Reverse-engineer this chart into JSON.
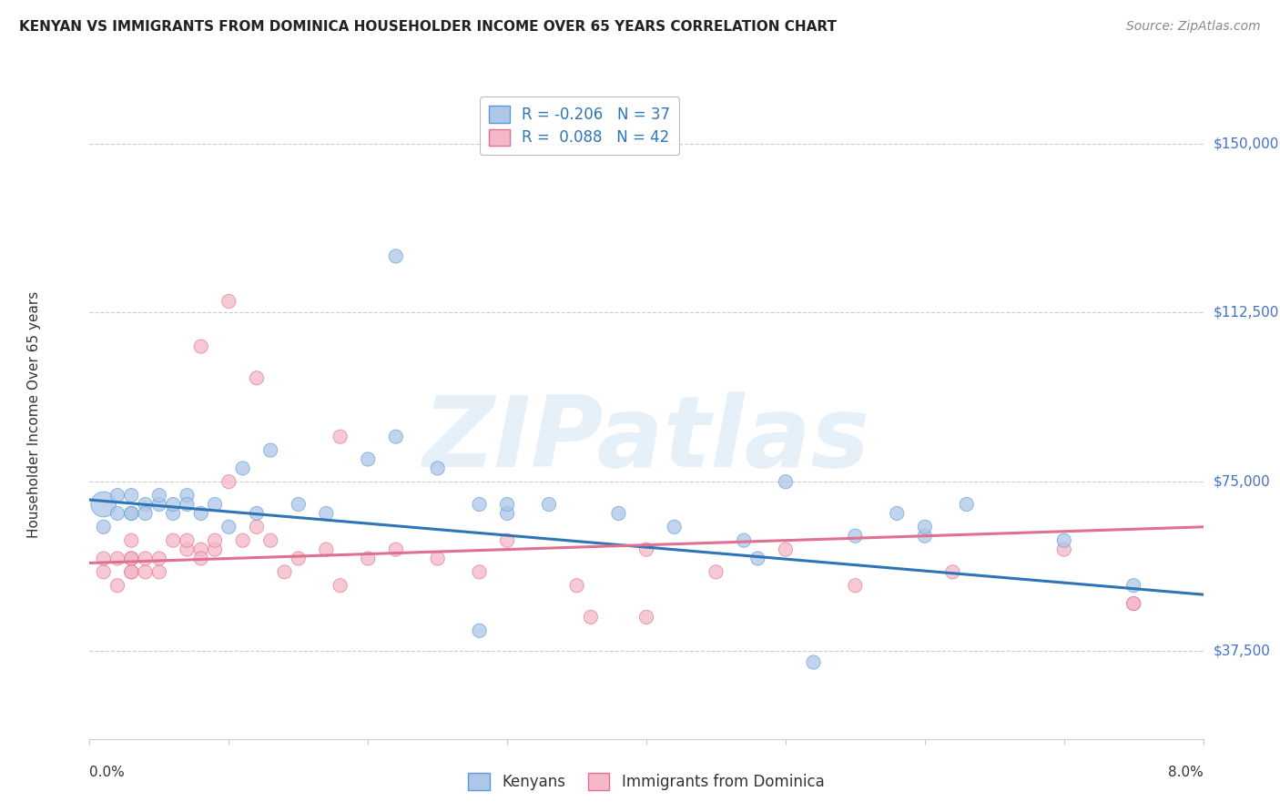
{
  "title": "KENYAN VS IMMIGRANTS FROM DOMINICA HOUSEHOLDER INCOME OVER 65 YEARS CORRELATION CHART",
  "source": "Source: ZipAtlas.com",
  "ylabel": "Householder Income Over 65 years",
  "xlim": [
    0.0,
    0.08
  ],
  "ylim": [
    18000,
    162000
  ],
  "yticks": [
    37500,
    75000,
    112500,
    150000
  ],
  "ytick_labels": [
    "$37,500",
    "$75,000",
    "$112,500",
    "$150,000"
  ],
  "xtick_positions": [
    0.0,
    0.01,
    0.02,
    0.03,
    0.04,
    0.05,
    0.06,
    0.07,
    0.08
  ],
  "xtick_labels": [
    "0.0%",
    "",
    "",
    "",
    "",
    "",
    "",
    "",
    "8.0%"
  ],
  "legend_entries": [
    {
      "label": "R = -0.206   N = 37",
      "color": "#aec6e8",
      "edgecolor": "#5b9bd5"
    },
    {
      "label": "R =  0.088   N = 42",
      "color": "#f4b8c8",
      "edgecolor": "#e07090"
    }
  ],
  "bottom_legend": [
    {
      "label": "Kenyans",
      "color": "#aec6e8",
      "edgecolor": "#5b9bd5"
    },
    {
      "label": "Immigrants from Dominica",
      "color": "#f4b8c8",
      "edgecolor": "#e07090"
    }
  ],
  "kenyan_scatter": {
    "x": [
      0.001,
      0.001,
      0.002,
      0.002,
      0.003,
      0.003,
      0.003,
      0.004,
      0.004,
      0.005,
      0.005,
      0.006,
      0.006,
      0.007,
      0.007,
      0.008,
      0.009,
      0.01,
      0.011,
      0.012,
      0.013,
      0.015,
      0.017,
      0.02,
      0.022,
      0.025,
      0.028,
      0.03,
      0.033,
      0.038,
      0.042,
      0.047,
      0.055,
      0.06,
      0.063,
      0.07,
      0.075
    ],
    "y": [
      65000,
      70000,
      68000,
      72000,
      68000,
      72000,
      68000,
      70000,
      68000,
      70000,
      72000,
      68000,
      70000,
      72000,
      70000,
      68000,
      70000,
      65000,
      78000,
      68000,
      82000,
      70000,
      68000,
      80000,
      85000,
      78000,
      70000,
      68000,
      70000,
      68000,
      65000,
      62000,
      63000,
      63000,
      70000,
      62000,
      52000
    ],
    "sizes": [
      120,
      400,
      120,
      120,
      120,
      120,
      120,
      120,
      120,
      120,
      120,
      120,
      120,
      120,
      120,
      120,
      120,
      120,
      120,
      120,
      120,
      120,
      120,
      120,
      120,
      120,
      120,
      120,
      120,
      120,
      120,
      120,
      120,
      120,
      120,
      120,
      120
    ],
    "color": "#aec6e8",
    "edgecolor": "#5b9bd5",
    "alpha": 0.75
  },
  "kenyan_scatter2": {
    "x": [
      0.022,
      0.03,
      0.05,
      0.058,
      0.06
    ],
    "y": [
      125000,
      70000,
      75000,
      68000,
      65000
    ],
    "sizes": [
      120,
      120,
      120,
      120,
      120
    ],
    "color": "#aec6e8",
    "edgecolor": "#5b9bd5",
    "alpha": 0.75
  },
  "kenyan_outliers": {
    "x": [
      0.028,
      0.048,
      0.052
    ],
    "y": [
      42000,
      58000,
      35000
    ],
    "sizes": [
      120,
      120,
      120
    ],
    "color": "#aec6e8",
    "edgecolor": "#5b9bd5",
    "alpha": 0.75
  },
  "dominica_scatter": {
    "x": [
      0.001,
      0.001,
      0.002,
      0.002,
      0.003,
      0.003,
      0.003,
      0.003,
      0.003,
      0.004,
      0.004,
      0.005,
      0.005,
      0.006,
      0.007,
      0.007,
      0.008,
      0.008,
      0.009,
      0.009,
      0.01,
      0.011,
      0.012,
      0.013,
      0.014,
      0.015,
      0.017,
      0.018,
      0.02,
      0.022,
      0.025,
      0.028,
      0.03,
      0.035,
      0.04,
      0.045,
      0.05,
      0.055,
      0.062,
      0.07,
      0.075
    ],
    "y": [
      55000,
      58000,
      52000,
      58000,
      58000,
      62000,
      55000,
      58000,
      55000,
      55000,
      58000,
      55000,
      58000,
      62000,
      60000,
      62000,
      60000,
      58000,
      60000,
      62000,
      75000,
      62000,
      65000,
      62000,
      55000,
      58000,
      60000,
      52000,
      58000,
      60000,
      58000,
      55000,
      62000,
      52000,
      60000,
      55000,
      60000,
      52000,
      55000,
      60000,
      48000
    ],
    "sizes": [
      120,
      120,
      120,
      120,
      120,
      120,
      120,
      120,
      120,
      120,
      120,
      120,
      120,
      120,
      120,
      120,
      120,
      120,
      120,
      120,
      120,
      120,
      120,
      120,
      120,
      120,
      120,
      120,
      120,
      120,
      120,
      120,
      120,
      120,
      120,
      120,
      120,
      120,
      120,
      120,
      120
    ],
    "color": "#f4b8c8",
    "edgecolor": "#e07090",
    "alpha": 0.75
  },
  "dominica_outliers": {
    "x": [
      0.008,
      0.01,
      0.012,
      0.018,
      0.036,
      0.04,
      0.075
    ],
    "y": [
      105000,
      115000,
      98000,
      85000,
      45000,
      45000,
      48000
    ],
    "sizes": [
      120,
      120,
      120,
      120,
      120,
      120,
      120
    ],
    "color": "#f4b8c8",
    "edgecolor": "#e07090",
    "alpha": 0.75
  },
  "kenyan_line": {
    "x": [
      0.0,
      0.08
    ],
    "y": [
      71000,
      50000
    ],
    "color": "#2e75b6",
    "linewidth": 2.2
  },
  "dominica_line": {
    "x": [
      0.0,
      0.08
    ],
    "y": [
      57000,
      65000
    ],
    "color": "#e07090",
    "linewidth": 2.2
  },
  "background_color": "#ffffff",
  "grid_color": "#cccccc",
  "watermark": "ZIPatlas",
  "watermark_color": "#c8dff0",
  "watermark_alpha": 0.45
}
